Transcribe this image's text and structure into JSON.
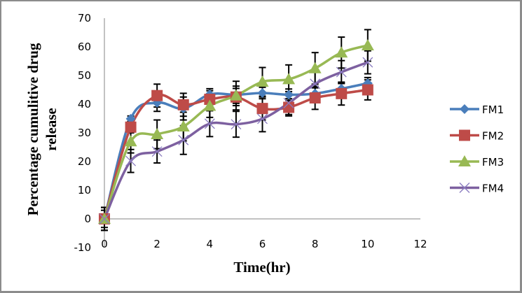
{
  "chart_data": {
    "type": "line",
    "title": "",
    "xlabel": "Time(hr)",
    "ylabel": [
      "Percentage cumulitive drug",
      "release"
    ],
    "xlim": [
      0,
      12
    ],
    "ylim": [
      -10,
      70
    ],
    "x_ticks": [
      0,
      2,
      4,
      6,
      8,
      10,
      12
    ],
    "y_ticks": [
      -10,
      0,
      10,
      20,
      30,
      40,
      50,
      60,
      70
    ],
    "grid": false,
    "legend_position": "right",
    "smooth": true,
    "error_bars": true,
    "x": [
      0,
      1,
      2,
      3,
      4,
      5,
      6,
      7,
      8,
      9,
      10
    ],
    "series": [
      {
        "name": "FM1",
        "color": "#4a7ebb",
        "marker": "diamond",
        "values": [
          0,
          34.9,
          40.5,
          38.5,
          43.4,
          43.3,
          43.9,
          43.3,
          43.7,
          45.4,
          47.3
        ],
        "errors": [
          4,
          1,
          3,
          4,
          2,
          3,
          2,
          2,
          2,
          2,
          2
        ]
      },
      {
        "name": "FM2",
        "color": "#be4b48",
        "marker": "square",
        "values": [
          0,
          32,
          43,
          39.8,
          41.7,
          42.5,
          38.5,
          38.9,
          42.2,
          43.7,
          45
        ],
        "errors": [
          4,
          2,
          4,
          4,
          3,
          3,
          4,
          3,
          4,
          4,
          3.5
        ]
      },
      {
        "name": "FM3",
        "color": "#98b954",
        "marker": "triangle",
        "values": [
          0,
          27,
          29.5,
          32.2,
          39.4,
          43,
          47.8,
          48.7,
          52.5,
          58,
          60.5
        ],
        "errors": [
          3,
          4,
          5,
          5,
          4,
          5,
          5,
          5,
          5.5,
          5.4,
          5.5
        ]
      },
      {
        "name": "FM4",
        "color": "#7d60a0",
        "marker": "x",
        "values": [
          0,
          20.2,
          23.5,
          27.5,
          33.2,
          33,
          34.9,
          40.4,
          47.1,
          51.2,
          54.6
        ],
        "errors": [
          4,
          4,
          4,
          5,
          4.5,
          4.5,
          4.5,
          4,
          4,
          4,
          4
        ]
      }
    ]
  }
}
